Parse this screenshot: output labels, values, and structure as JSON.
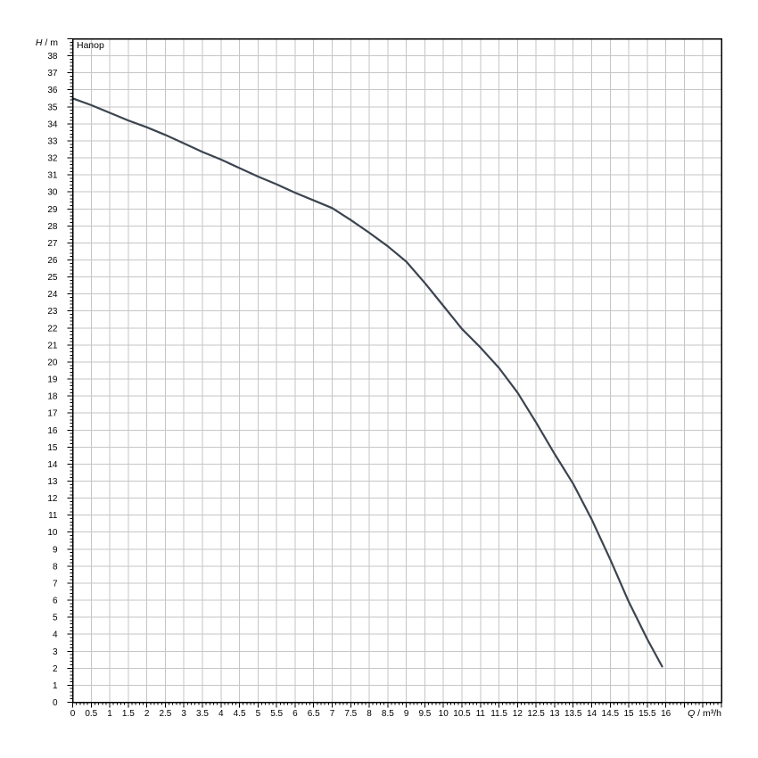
{
  "chart_data": {
    "type": "line",
    "title": "Напор",
    "xlabel": "Q / m³/h",
    "ylabel": "H / m",
    "xlabel_var": "Q",
    "xlabel_rest": " / m³/h",
    "ylabel_var": "H",
    "ylabel_rest": " / m",
    "xlim": [
      0,
      17.5
    ],
    "ylim": [
      0,
      39
    ],
    "x_label_step": 0.5,
    "x_label_max": 16,
    "x_minor_step": 0.1,
    "x_grid_step": 0.5,
    "y_label_step": 1,
    "y_label_max": 38,
    "y_minor_step": 0.2,
    "y_grid_step": 1,
    "grid": true,
    "legend_position": "none",
    "colors": {
      "curve": "#3c4450",
      "grid": "#c6c6c6",
      "axis": "#000000",
      "text": "#000000",
      "background": "#ffffff"
    },
    "series": [
      {
        "name": "Напор",
        "points": [
          [
            0,
            35.5
          ],
          [
            0.5,
            35.1
          ],
          [
            1,
            34.65
          ],
          [
            1.5,
            34.2
          ],
          [
            2,
            33.8
          ],
          [
            2.5,
            33.35
          ],
          [
            3,
            32.85
          ],
          [
            3.5,
            32.35
          ],
          [
            4,
            31.9
          ],
          [
            4.5,
            31.4
          ],
          [
            5,
            30.9
          ],
          [
            5.5,
            30.45
          ],
          [
            6,
            29.95
          ],
          [
            6.5,
            29.5
          ],
          [
            7,
            29.05
          ],
          [
            7.5,
            28.35
          ],
          [
            8,
            27.6
          ],
          [
            8.5,
            26.8
          ],
          [
            9,
            25.9
          ],
          [
            9.5,
            24.65
          ],
          [
            10,
            23.3
          ],
          [
            10.5,
            21.95
          ],
          [
            11,
            20.85
          ],
          [
            11.5,
            19.65
          ],
          [
            12,
            18.2
          ],
          [
            12.5,
            16.45
          ],
          [
            13,
            14.6
          ],
          [
            13.5,
            12.85
          ],
          [
            14,
            10.75
          ],
          [
            14.5,
            8.4
          ],
          [
            15,
            5.9
          ],
          [
            15.5,
            3.7
          ],
          [
            15.9,
            2.1
          ]
        ]
      }
    ]
  }
}
